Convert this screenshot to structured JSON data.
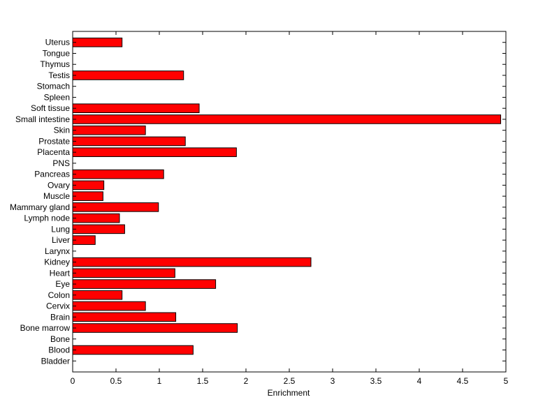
{
  "chart_data": {
    "type": "bar",
    "orientation": "horizontal",
    "title": "",
    "xlabel": "Enrichment",
    "ylabel": "",
    "xlim": [
      0,
      5
    ],
    "xticks": [
      0,
      0.5,
      1,
      1.5,
      2,
      2.5,
      3,
      3.5,
      4,
      4.5,
      5
    ],
    "xtick_labels": [
      "0",
      "0.5",
      "1",
      "1.5",
      "2",
      "2.5",
      "3",
      "3.5",
      "4",
      "4.5",
      "5"
    ],
    "grid": false,
    "legend": "none",
    "bar_color": "#ff0000",
    "bar_edge_color": "#000000",
    "categories": [
      "Bladder",
      "Blood",
      "Bone",
      "Bone marrow",
      "Brain",
      "Cervix",
      "Colon",
      "Eye",
      "Heart",
      "Kidney",
      "Larynx",
      "Liver",
      "Lung",
      "Lymph node",
      "Mammary gland",
      "Muscle",
      "Ovary",
      "Pancreas",
      "PNS",
      "Placenta",
      "Prostate",
      "Skin",
      "Small intestine",
      "Soft tissue",
      "Spleen",
      "Stomach",
      "Testis",
      "Thymus",
      "Tongue",
      "Uterus"
    ],
    "values": [
      0,
      1.39,
      0,
      1.9,
      1.19,
      0.84,
      0.57,
      1.65,
      1.18,
      2.75,
      0,
      0.26,
      0.6,
      0.54,
      0.99,
      0.35,
      0.36,
      1.05,
      0,
      1.89,
      1.3,
      0.84,
      4.94,
      1.46,
      0,
      0,
      1.28,
      0,
      0,
      0.57
    ]
  }
}
